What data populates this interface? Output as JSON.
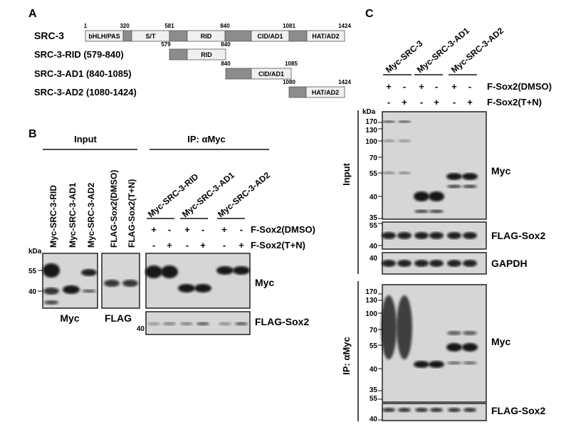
{
  "panelA": {
    "letter": "A",
    "constructs": [
      {
        "label": "SRC-3",
        "nums": [
          "1",
          "320",
          "581",
          "840",
          "1081",
          "1424"
        ],
        "domains": [
          "bHLH/PAS",
          "S/T",
          "RID",
          "CID/AD1",
          "HAT/AD2"
        ]
      },
      {
        "label": "SRC-3-RID  (579-840)",
        "nums": [
          "579",
          "840"
        ],
        "domains": [
          "RID"
        ]
      },
      {
        "label": "SRC-3-AD1  (840-1085)",
        "nums": [
          "840",
          "1085"
        ],
        "domains": [
          "CID/AD1"
        ]
      },
      {
        "label": "SRC-3-AD2  (1080-1424)",
        "nums": [
          "1080",
          "1424"
        ],
        "domains": [
          "HAT/AD2"
        ]
      }
    ]
  },
  "panelB": {
    "letter": "B",
    "input_header": "Input",
    "ip_header": "IP: αMyc",
    "input_lanes": [
      "Myc-SRC-3-RID",
      "Myc-SRC-3-AD1",
      "Myc-SRC-3-AD2",
      "FLAG-Sox2(DMSO)",
      "FLAG-Sox2(T+N)"
    ],
    "ip_groups": [
      "Myc-SRC-3-RID",
      "Myc-SRC-3-AD1",
      "Myc-SRC-3-AD2"
    ],
    "row1": {
      "label": "F-Sox2(DMSO)",
      "signs": [
        "+",
        "-",
        "+",
        "-",
        "+",
        "-"
      ]
    },
    "row2": {
      "label": "F-Sox2(T+N)",
      "signs": [
        "-",
        "+",
        "-",
        "+",
        "-",
        "+"
      ]
    },
    "kda": "kDa",
    "markers": [
      "55",
      "40"
    ],
    "ip_flag_marker": "40",
    "blot_labels": {
      "myc_input": "Myc",
      "flag_input": "FLAG",
      "myc_ip": "Myc",
      "flag_ip": "FLAG-Sox2"
    }
  },
  "panelC": {
    "letter": "C",
    "groups": [
      "Myc-SRC-3",
      "Myc-SRC-3-AD1",
      "Myc-SRC-3-AD2"
    ],
    "row1": {
      "label": "F-Sox2(DMSO)",
      "signs": [
        "+",
        "-",
        "+",
        "-",
        "+",
        "-"
      ]
    },
    "row2": {
      "label": "F-Sox2(T+N)",
      "signs": [
        "-",
        "+",
        "-",
        "+",
        "-",
        "+"
      ]
    },
    "input_label": "Input",
    "ip_label": "IP: αMyc",
    "kda": "kDa",
    "myc_markers": [
      "170",
      "130",
      "100",
      "70",
      "55",
      "40",
      "35"
    ],
    "flag_markers": [
      "55",
      "40"
    ],
    "gapdh_marker": "40",
    "blot_labels": {
      "myc_input": "Myc",
      "flag_input": "FLAG-Sox2",
      "gapdh": "GAPDH",
      "myc_ip": "Myc",
      "flag_ip": "FLAG-Sox2"
    }
  }
}
